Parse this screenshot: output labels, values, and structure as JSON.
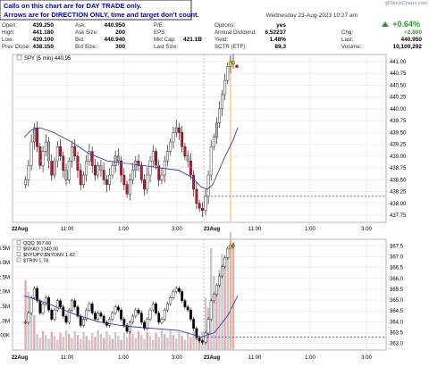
{
  "warning_lines": [
    "Calls on this chart are for DAY TRADE only.",
    "Arrows are for DIRECTION ONLY, time and target don't count."
  ],
  "header": {
    "datetime": "Wednesday  23-Aug-2023  10:27 am",
    "change_pct": "+0.64%",
    "watermark": "@StockCharts.com",
    "rows": [
      [
        {
          "label": "Open:",
          "value": "439.250"
        },
        {
          "label": "Ask:",
          "value": "440.950"
        },
        {
          "label": "P/E:",
          "value": ""
        },
        {
          "label": "Options:",
          "value": "yes"
        }
      ],
      [
        {
          "label": "High:",
          "value": "441.180"
        },
        {
          "label": "Ask Size:",
          "value": "200"
        },
        {
          "label": "EPS:",
          "value": ""
        },
        {
          "label": "Annual Dividend:",
          "value": "6.52237"
        },
        {
          "label": "Chg:",
          "value": "+2.800"
        }
      ],
      [
        {
          "label": "Low:",
          "value": "439.100"
        },
        {
          "label": "Bid:",
          "value": "440.940"
        },
        {
          "label": "Mkt Cap:",
          "value": "421.1B"
        },
        {
          "label": "Yield:",
          "value": "1.48%"
        },
        {
          "label": "Last:",
          "value": "440.950"
        }
      ],
      [
        {
          "label": "Prev Close:",
          "value": "438.150"
        },
        {
          "label": "Bid Size:",
          "value": "300"
        },
        {
          "label": "Last Size:",
          "value": ""
        },
        {
          "label": "SCTR (ETF):",
          "value": "89.3"
        },
        {
          "label": "Volume:",
          "value": "10,100,292"
        }
      ]
    ],
    "colors": {
      "up": "#2a9a2a",
      "down": "#d4122a",
      "brand": "#2255aa"
    }
  },
  "chart_data": [
    {
      "type": "candlestick",
      "legend": "SPY (5 min) 440.95",
      "x_tick_labels": [
        "22Aug",
        "11:00",
        "1:00",
        "3:00",
        "23Aug",
        "11:00",
        "1:00",
        "3:00"
      ],
      "y_ticks": [
        437.75,
        438.0,
        438.25,
        438.5,
        438.75,
        439.0,
        439.25,
        439.5,
        439.75,
        440.0,
        440.25,
        440.5,
        440.75,
        441.0
      ],
      "y_tick_labels": [
        "437.75",
        "438.00",
        "438.25",
        "438.50",
        "438.75",
        "439.00",
        "439.25",
        "439.50",
        "439.75",
        "440.00",
        "440.25",
        "440.50",
        "440.75",
        "441.00"
      ],
      "ylim": [
        437.6,
        441.15
      ],
      "prev_close": 438.15,
      "last": 440.95,
      "close_series": [
        438.5,
        438.8,
        439.3,
        439.6,
        439.2,
        438.8,
        439.1,
        439.3,
        438.9,
        438.6,
        438.9,
        439.2,
        439.0,
        438.7,
        438.5,
        438.9,
        439.2,
        439.0,
        438.7,
        438.4,
        438.6,
        438.9,
        439.1,
        438.8,
        438.6,
        438.8,
        438.7,
        438.5,
        438.4,
        438.6,
        438.8,
        439.0,
        438.9,
        438.6,
        438.4,
        438.2,
        438.5,
        438.7,
        438.9,
        438.8,
        438.5,
        438.3,
        438.6,
        438.9,
        439.1,
        438.8,
        438.5,
        438.6,
        438.9,
        439.1,
        439.3,
        439.5,
        439.6,
        439.5,
        439.2,
        439.0,
        438.9,
        438.6,
        438.3,
        438.0,
        437.9,
        437.85,
        438.15,
        438.6,
        439.2,
        439.4,
        439.7,
        440.0,
        440.3,
        440.6,
        440.9,
        441.0,
        440.95
      ]
    },
    {
      "type": "line",
      "legends": [
        "QQQ 367.60",
        "$NYAD 1340.00",
        "$NYUPV:$NYDNV 1.42",
        "$TRIN 1.78"
      ],
      "y_tick_labels_left": [
        "500K",
        "1.0M",
        "1.5M",
        "2.0M",
        "2.5M",
        "3.0M",
        "3.5M"
      ],
      "y_ticks_left": [
        0.5,
        1.0,
        1.5,
        2.0,
        2.5,
        3.0,
        3.5
      ],
      "y_tick_labels_right": [
        "363.0",
        "363.5",
        "364.0",
        "364.5",
        "365.0",
        "365.5",
        "366.0",
        "366.5",
        "367.0",
        "367.5"
      ],
      "y_ticks_right": [
        363.0,
        363.5,
        364.0,
        364.5,
        365.0,
        365.5,
        366.0,
        366.5,
        367.0,
        367.5
      ],
      "ylim_right": [
        362.7,
        367.8
      ],
      "x_tick_labels": [
        "22Aug",
        "11:00",
        "1:00",
        "3:00",
        "23Aug",
        "11:00",
        "1:00",
        "3:00"
      ],
      "prev_close": 363.3
    }
  ]
}
